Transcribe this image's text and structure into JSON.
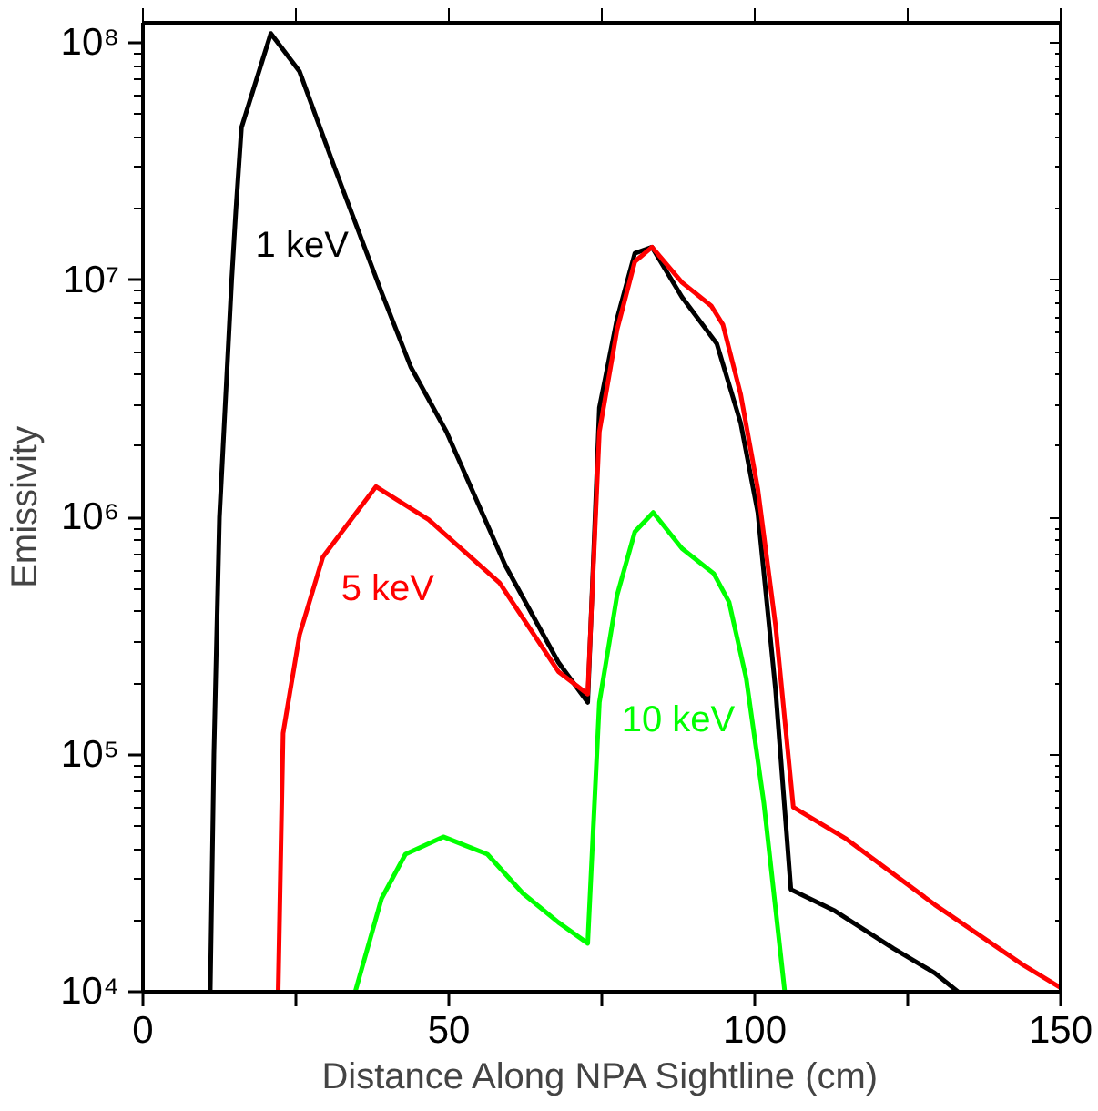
{
  "chart_data": {
    "type": "line",
    "xlabel": "Distance Along NPA Sightline (cm)",
    "ylabel": "Emissivity",
    "log": "y",
    "grid": false,
    "legend": false,
    "marker": "none",
    "line_style": "solid",
    "xlim": [
      0,
      150
    ],
    "ylim": [
      10000,
      122000000
    ],
    "xticks": [
      0,
      {
        "value": 25,
        "label": null
      },
      50,
      {
        "value": 75,
        "label": null
      },
      100,
      {
        "value": 125,
        "label": null
      },
      150
    ],
    "yticks": [
      {
        "value": 10000,
        "label": "10⁴"
      },
      {
        "value": 100000,
        "label": "10⁵"
      },
      {
        "value": 1000000,
        "label": "10⁶"
      },
      {
        "value": 10000000,
        "label": "10⁷"
      },
      {
        "value": 100000000,
        "label": "10⁸"
      }
    ],
    "series": [
      {
        "name": "1 keV",
        "color": "#000000",
        "x": [
          11.0,
          11.6,
          12.5,
          14.5,
          15.2,
          16.1,
          20.9,
          25.6,
          31.3,
          39.0,
          43.8,
          49.6,
          59.2,
          67.9,
          72.7,
          74.6,
          77.5,
          80.4,
          83.2,
          88.1,
          93.8,
          97.7,
          100.5,
          103.4,
          105.9,
          113.1,
          122.7,
          129.4,
          133.2
        ],
        "values": [
          10000,
          100000,
          1000000,
          10000000,
          20000000,
          44000000,
          110000000,
          76000000,
          30000000,
          8900000,
          4300000,
          2300000,
          630000,
          245000,
          166000,
          2900000,
          6900000,
          13000000,
          13800000,
          8500000,
          5400000,
          2500000,
          1050000,
          187000,
          27000,
          21900,
          15200,
          12000,
          10000
        ]
      },
      {
        "name": "5 keV",
        "color": "#ff0000",
        "x": [
          22.1,
          22.9,
          25.6,
          29.4,
          38.1,
          46.7,
          52.5,
          58.3,
          67.9,
          72.7,
          74.6,
          77.5,
          80.4,
          83.2,
          88.1,
          92.9,
          94.8,
          97.7,
          100.5,
          103.4,
          106.3,
          115.0,
          129.4,
          143.8,
          150
        ],
        "values": [
          10000,
          123000,
          320000,
          680000,
          1350000,
          980000,
          720000,
          530000,
          224000,
          180000,
          2300000,
          6200000,
          12000000,
          13800000,
          9800000,
          7800000,
          6500000,
          3300000,
          1320000,
          350000,
          60000,
          44000,
          23300,
          13000,
          10400
        ]
      },
      {
        "name": "10 keV",
        "color": "#00ff00",
        "x": [
          34.7,
          39.0,
          42.9,
          49.1,
          56.3,
          62.1,
          67.9,
          72.7,
          74.6,
          77.5,
          80.4,
          83.4,
          88.1,
          93.3,
          95.8,
          98.6,
          101.5,
          104.9
        ],
        "values": [
          10000,
          24700,
          38000,
          45000,
          38000,
          26000,
          19600,
          16000,
          166000,
          470000,
          870000,
          1050000,
          740000,
          580000,
          440000,
          210000,
          62000,
          10000
        ]
      }
    ]
  }
}
